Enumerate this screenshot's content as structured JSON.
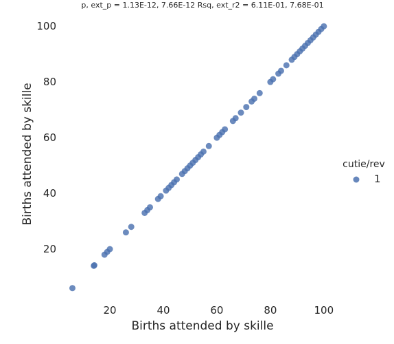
{
  "chart_data": {
    "type": "scatter",
    "title": "p, ext_p = 1.13E-12, 7.66E-12 Rsq, ext_r2 = 6.11E-01, 7.68E-01",
    "xlabel": "Births attended by skille",
    "ylabel": "Births attended by skille",
    "xlim": [
      1,
      108
    ],
    "ylim": [
      1,
      104
    ],
    "xticks": [
      20,
      40,
      60,
      80,
      100
    ],
    "yticks": [
      20,
      40,
      60,
      80,
      100
    ],
    "grid": false,
    "legend": {
      "title": "cutie/rev",
      "placement": "right"
    },
    "series": [
      {
        "name": "1",
        "color": "#4c72b0",
        "points": [
          [
            6,
            6
          ],
          [
            14,
            14
          ],
          [
            14.2,
            14.2
          ],
          [
            18,
            18
          ],
          [
            19,
            19
          ],
          [
            20,
            20
          ],
          [
            26,
            26
          ],
          [
            28,
            28
          ],
          [
            33,
            33
          ],
          [
            34,
            34
          ],
          [
            35,
            35
          ],
          [
            38,
            38
          ],
          [
            39,
            39
          ],
          [
            41,
            41
          ],
          [
            42,
            42
          ],
          [
            43,
            43
          ],
          [
            44,
            44
          ],
          [
            45,
            45
          ],
          [
            47,
            47
          ],
          [
            48,
            48
          ],
          [
            49,
            49
          ],
          [
            50,
            50
          ],
          [
            51,
            51
          ],
          [
            52,
            52
          ],
          [
            53,
            53
          ],
          [
            54,
            54
          ],
          [
            55,
            55
          ],
          [
            57,
            57
          ],
          [
            60,
            60
          ],
          [
            61,
            61
          ],
          [
            62,
            62
          ],
          [
            63,
            63
          ],
          [
            66,
            66
          ],
          [
            67,
            67
          ],
          [
            69,
            69
          ],
          [
            71,
            71
          ],
          [
            73,
            73
          ],
          [
            74,
            74
          ],
          [
            76,
            76
          ],
          [
            80,
            80
          ],
          [
            81,
            81
          ],
          [
            83,
            83
          ],
          [
            84,
            84
          ],
          [
            86,
            86
          ],
          [
            88,
            88
          ],
          [
            89,
            89
          ],
          [
            90,
            90
          ],
          [
            91,
            91
          ],
          [
            92,
            92
          ],
          [
            93,
            93
          ],
          [
            94,
            94
          ],
          [
            95,
            95
          ],
          [
            96,
            96
          ],
          [
            97,
            97
          ],
          [
            98,
            98
          ],
          [
            99,
            99
          ],
          [
            100,
            100
          ]
        ]
      }
    ]
  }
}
